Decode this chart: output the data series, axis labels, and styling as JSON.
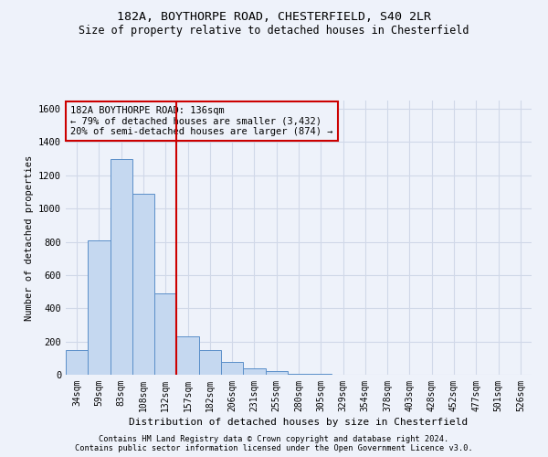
{
  "title1": "182A, BOYTHORPE ROAD, CHESTERFIELD, S40 2LR",
  "title2": "Size of property relative to detached houses in Chesterfield",
  "xlabel": "Distribution of detached houses by size in Chesterfield",
  "ylabel": "Number of detached properties",
  "categories": [
    "34sqm",
    "59sqm",
    "83sqm",
    "108sqm",
    "132sqm",
    "157sqm",
    "182sqm",
    "206sqm",
    "231sqm",
    "255sqm",
    "280sqm",
    "305sqm",
    "329sqm",
    "354sqm",
    "378sqm",
    "403sqm",
    "428sqm",
    "452sqm",
    "477sqm",
    "501sqm",
    "526sqm"
  ],
  "values": [
    150,
    810,
    1300,
    1090,
    490,
    230,
    150,
    75,
    40,
    20,
    5,
    5,
    2,
    2,
    1,
    1,
    0,
    0,
    0,
    0,
    0
  ],
  "bar_color": "#c5d8f0",
  "bar_edge_color": "#5b8fc9",
  "vline_x": 4.5,
  "vline_color": "#cc0000",
  "annotation_line1": "182A BOYTHORPE ROAD: 136sqm",
  "annotation_line2": "← 79% of detached houses are smaller (3,432)",
  "annotation_line3": "20% of semi-detached houses are larger (874) →",
  "annotation_box_color": "#cc0000",
  "ylim": [
    0,
    1650
  ],
  "yticks": [
    0,
    200,
    400,
    600,
    800,
    1000,
    1200,
    1400,
    1600
  ],
  "footer1": "Contains HM Land Registry data © Crown copyright and database right 2024.",
  "footer2": "Contains public sector information licensed under the Open Government Licence v3.0.",
  "bg_color": "#eef2fa",
  "grid_color": "#d0d8e8"
}
